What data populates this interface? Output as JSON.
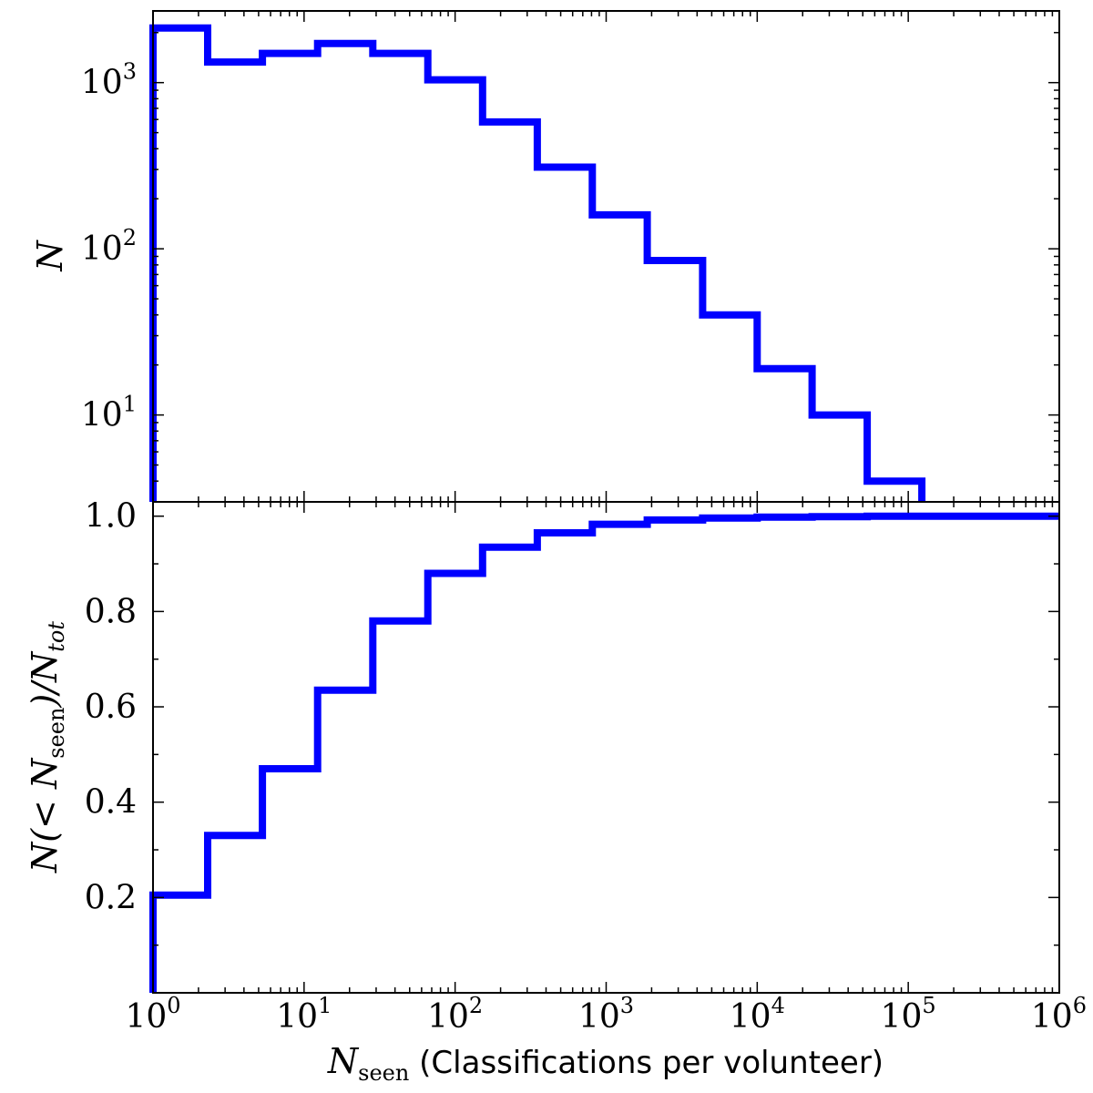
{
  "chart_data": [
    {
      "type": "line",
      "step": true,
      "yscale": "log",
      "xscale": "log",
      "xlim": [
        1,
        1000000
      ],
      "ylim": [
        3,
        2700
      ],
      "xlabel": "",
      "ylabel": "N",
      "color": "#0000ff",
      "y_ticks": [
        {
          "value": 10,
          "base": "10",
          "exp": "1"
        },
        {
          "value": 100,
          "base": "10",
          "exp": "2"
        },
        {
          "value": 1000,
          "base": "10",
          "exp": "3"
        }
      ],
      "bin_edges": [
        1,
        2.3,
        5.3,
        12.3,
        28.5,
        66,
        152,
        350,
        810,
        1870,
        4350,
        10000,
        23100,
        53500,
        123000
      ],
      "values": [
        2130,
        1330,
        1500,
        1720,
        1500,
        1040,
        580,
        310,
        160,
        85,
        40,
        19,
        10,
        4
      ]
    },
    {
      "type": "line",
      "step": true,
      "xscale": "log",
      "xlim": [
        1,
        1000000
      ],
      "ylim": [
        0,
        1.03
      ],
      "ylabel_parts": {
        "pre": "N(< N",
        "sub": "seen",
        "mid": ")/N",
        "sub2": "tot"
      },
      "xlabel_parts": {
        "main": "N",
        "sub": "seen",
        "rest": " (Classifications per volunteer)"
      },
      "color": "#0000ff",
      "y_ticks": [
        "0.2",
        "0.4",
        "0.6",
        "0.8",
        "1.0"
      ],
      "x_ticks": [
        {
          "value": 1,
          "base": "10",
          "exp": "0"
        },
        {
          "value": 10,
          "base": "10",
          "exp": "1"
        },
        {
          "value": 100,
          "base": "10",
          "exp": "2"
        },
        {
          "value": 1000,
          "base": "10",
          "exp": "3"
        },
        {
          "value": 10000,
          "base": "10",
          "exp": "4"
        },
        {
          "value": 100000,
          "base": "10",
          "exp": "5"
        },
        {
          "value": 1000000,
          "base": "10",
          "exp": "6"
        }
      ],
      "bin_edges": [
        1,
        2.3,
        5.3,
        12.3,
        28.5,
        66,
        152,
        350,
        810,
        1870,
        4350,
        10000,
        23100,
        53500,
        123000,
        1000000
      ],
      "values": [
        0.205,
        0.33,
        0.47,
        0.635,
        0.78,
        0.88,
        0.935,
        0.965,
        0.983,
        0.992,
        0.996,
        0.998,
        0.999,
        1.0,
        1.0
      ]
    }
  ]
}
